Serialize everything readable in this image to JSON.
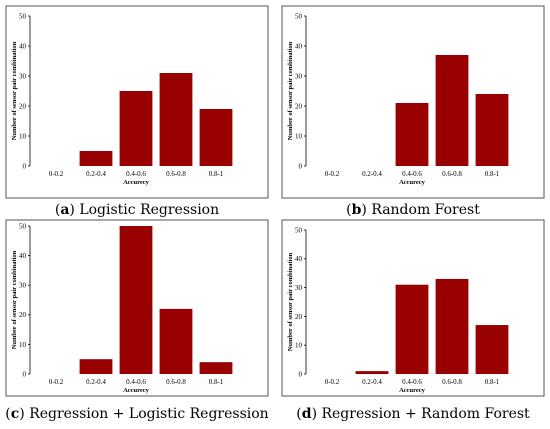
{
  "chart_data": [
    {
      "type": "bar",
      "panel": "a",
      "caption": "Logistic Regression",
      "categories": [
        "0-0.2",
        "0.2-0.4",
        "0.4-0.6",
        "0.6-0.8",
        "0.8-1"
      ],
      "values": [
        0,
        5,
        25,
        31,
        19
      ],
      "xlabel": "Accurecy",
      "ylabel": "Number of sensor pair combination",
      "ylim": [
        0,
        50
      ],
      "yticks": [
        0,
        10,
        20,
        30,
        40,
        50
      ],
      "bar_color": "#990000",
      "grid": false
    },
    {
      "type": "bar",
      "panel": "b",
      "caption": "Random Forest",
      "categories": [
        "0-0.2",
        "0.2-0.4",
        "0.4-0.6",
        "0.6-0.8",
        "0.8-1"
      ],
      "values": [
        0,
        0,
        21,
        37,
        24
      ],
      "xlabel": "Accurecy",
      "ylabel": "Number of sensor pair combination",
      "ylim": [
        0,
        50
      ],
      "yticks": [
        0,
        10,
        20,
        30,
        40,
        50
      ],
      "bar_color": "#990000",
      "grid": false
    },
    {
      "type": "bar",
      "panel": "c",
      "caption": "Regression + Logistic Regression",
      "categories": [
        "0-0.2",
        "0.2-0.4",
        "0.4-0.6",
        "0.6-0.8",
        "0.8-1"
      ],
      "values": [
        0,
        5,
        50,
        22,
        4
      ],
      "xlabel": "Accurecy",
      "ylabel": "Number of sensor pair combination",
      "ylim": [
        0,
        50
      ],
      "yticks": [
        0,
        10,
        20,
        30,
        40,
        50
      ],
      "bar_color": "#990000",
      "grid": false
    },
    {
      "type": "bar",
      "panel": "d",
      "caption": "Regression + Random Forest",
      "categories": [
        "0-0.2",
        "0.2-0.4",
        "0.4-0.6",
        "0.6-0.8",
        "0.8-1"
      ],
      "values": [
        0,
        1,
        31,
        33,
        17
      ],
      "xlabel": "Accurecy",
      "ylabel": "Number of sensor pair combination",
      "ylim": [
        0,
        50
      ],
      "yticks": [
        0,
        10,
        20,
        30,
        40,
        50
      ],
      "bar_color": "#990000",
      "grid": false
    }
  ]
}
